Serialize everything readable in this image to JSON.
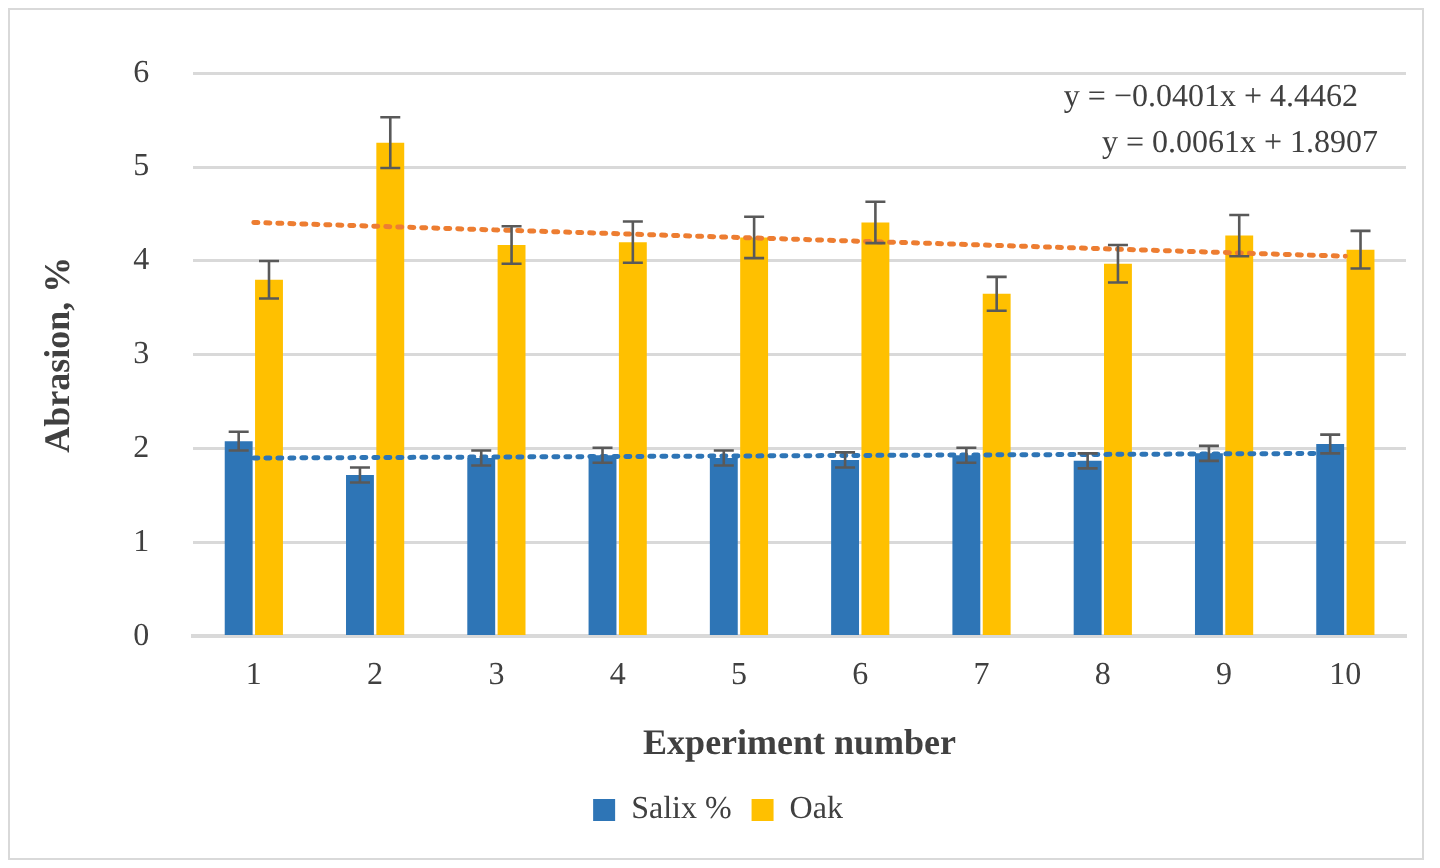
{
  "chart_data": {
    "type": "bar",
    "xlabel": "Experiment number",
    "ylabel": "Abrasion, %",
    "categories": [
      "1",
      "2",
      "3",
      "4",
      "5",
      "6",
      "7",
      "8",
      "9",
      "10"
    ],
    "series": [
      {
        "name": "Salix %",
        "color": "#2e75b6",
        "values": [
          2.08,
          1.72,
          1.9,
          1.93,
          1.9,
          1.88,
          1.93,
          1.87,
          1.95,
          2.05
        ],
        "errors": [
          0.1,
          0.08,
          0.08,
          0.08,
          0.08,
          0.08,
          0.08,
          0.08,
          0.08,
          0.1
        ]
      },
      {
        "name": "Oak",
        "color": "#ffc000",
        "values": [
          3.8,
          5.26,
          4.17,
          4.2,
          4.25,
          4.41,
          3.65,
          3.97,
          4.27,
          4.12
        ],
        "errors": [
          0.2,
          0.27,
          0.2,
          0.22,
          0.22,
          0.22,
          0.18,
          0.2,
          0.22,
          0.2
        ]
      },
      {
        "type": "line",
        "color": "#ed7d31",
        "x": [
          "1",
          "10"
        ],
        "values": [
          4.41,
          4.05
        ],
        "line_style": "dotted",
        "marker": "none"
      },
      {
        "type": "line",
        "color": "#2e75b6",
        "x": [
          "1",
          "10"
        ],
        "values": [
          1.9,
          1.95
        ],
        "line_style": "dotted",
        "marker": "none"
      }
    ],
    "ylim": [
      0,
      6
    ],
    "yticks": [
      0,
      1,
      2,
      3,
      4,
      5,
      6
    ],
    "grid": "y",
    "legend": "bottom",
    "annotations": [
      "y = −0.0401x + 4.4462",
      "y = 0.0061x + 1.8907"
    ]
  }
}
